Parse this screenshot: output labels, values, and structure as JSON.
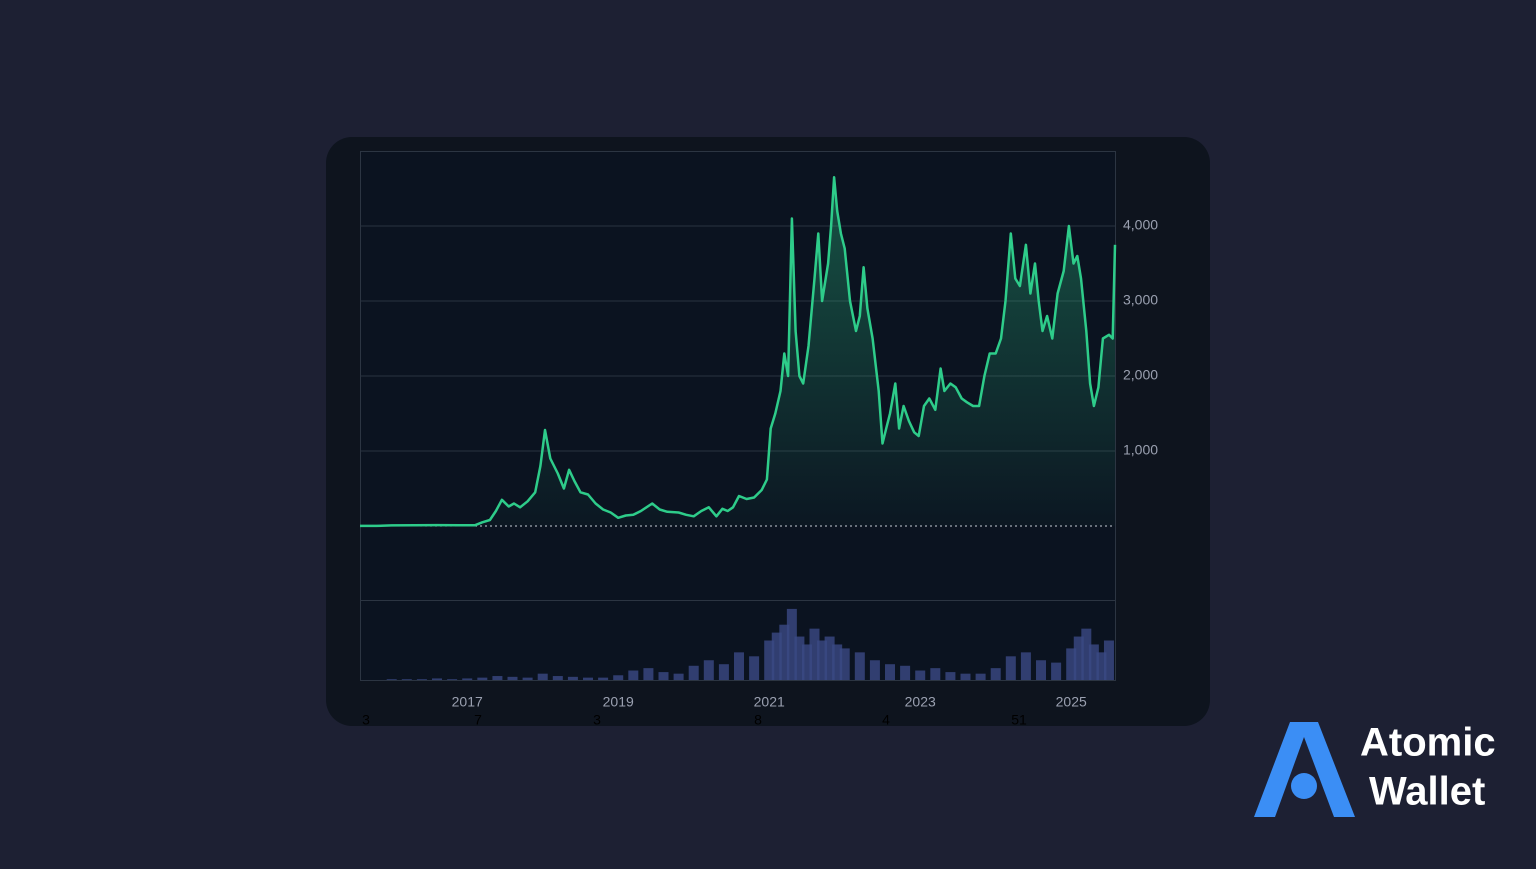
{
  "chart_data": {
    "type": "line",
    "color": "#2ecc8a",
    "x": [
      2015.58,
      2015.8,
      2016.0,
      2016.3,
      2016.6,
      2016.9,
      2017.1,
      2017.2,
      2017.3,
      2017.38,
      2017.46,
      2017.55,
      2017.62,
      2017.7,
      2017.8,
      2017.9,
      2017.97,
      2018.03,
      2018.1,
      2018.2,
      2018.28,
      2018.35,
      2018.42,
      2018.5,
      2018.6,
      2018.7,
      2018.8,
      2018.9,
      2019.0,
      2019.1,
      2019.2,
      2019.3,
      2019.45,
      2019.55,
      2019.65,
      2019.8,
      2019.9,
      2020.0,
      2020.1,
      2020.2,
      2020.3,
      2020.38,
      2020.45,
      2020.52,
      2020.6,
      2020.7,
      2020.8,
      2020.9,
      2020.97,
      2021.02,
      2021.08,
      2021.15,
      2021.2,
      2021.25,
      2021.3,
      2021.35,
      2021.4,
      2021.45,
      2021.52,
      2021.6,
      2021.65,
      2021.7,
      2021.78,
      2021.82,
      2021.86,
      2021.9,
      2021.95,
      2022.0,
      2022.07,
      2022.15,
      2022.2,
      2022.25,
      2022.3,
      2022.37,
      2022.45,
      2022.5,
      2022.55,
      2022.6,
      2022.67,
      2022.72,
      2022.78,
      2022.85,
      2022.92,
      2022.98,
      2023.05,
      2023.12,
      2023.2,
      2023.27,
      2023.32,
      2023.4,
      2023.47,
      2023.55,
      2023.62,
      2023.7,
      2023.78,
      2023.85,
      2023.92,
      2024.0,
      2024.07,
      2024.13,
      2024.2,
      2024.26,
      2024.32,
      2024.4,
      2024.46,
      2024.52,
      2024.57,
      2024.62,
      2024.68,
      2024.75,
      2024.82,
      2024.9,
      2024.97,
      2025.03,
      2025.08,
      2025.13,
      2025.2,
      2025.25,
      2025.3,
      2025.36,
      2025.42,
      2025.5,
      2025.55,
      2025.58
    ],
    "values": [
      1,
      1,
      8,
      10,
      12,
      10,
      10,
      50,
      80,
      200,
      350,
      260,
      300,
      250,
      330,
      450,
      800,
      1280,
      900,
      700,
      500,
      750,
      600,
      450,
      420,
      300,
      220,
      180,
      110,
      140,
      150,
      200,
      300,
      220,
      190,
      180,
      150,
      130,
      200,
      250,
      130,
      230,
      200,
      250,
      400,
      360,
      380,
      480,
      620,
      1300,
      1500,
      1800,
      2300,
      2000,
      4100,
      2600,
      2000,
      1900,
      2400,
      3300,
      3900,
      3000,
      3500,
      4000,
      4650,
      4200,
      3900,
      3700,
      3000,
      2600,
      2800,
      3450,
      2900,
      2500,
      1800,
      1100,
      1300,
      1500,
      1900,
      1300,
      1600,
      1400,
      1250,
      1200,
      1600,
      1700,
      1550,
      2100,
      1800,
      1900,
      1850,
      1700,
      1650,
      1600,
      1600,
      2000,
      2300,
      2300,
      2500,
      3000,
      3900,
      3300,
      3200,
      3750,
      3100,
      3500,
      3000,
      2600,
      2800,
      2500,
      3100,
      3400,
      4000,
      3500,
      3600,
      3300,
      2600,
      1900,
      1600,
      1850,
      2500,
      2550,
      2500,
      3750
    ],
    "ylim": [
      -1000,
      5000
    ],
    "xlim": [
      2015.58,
      2025.58
    ],
    "xticks": [
      2017,
      2019,
      2021,
      2023,
      2025
    ],
    "yticks": [
      {
        "value": 1000,
        "label": "1,000"
      },
      {
        "value": 2000,
        "label": "2,000"
      },
      {
        "value": 3000,
        "label": "3,000"
      },
      {
        "value": 4000,
        "label": "4,000"
      }
    ],
    "grid": true,
    "volume": {
      "color": "#3b4a85",
      "ylim": [
        0,
        100
      ],
      "x": [
        2015.6,
        2015.8,
        2016.0,
        2016.2,
        2016.4,
        2016.6,
        2016.8,
        2017.0,
        2017.2,
        2017.4,
        2017.6,
        2017.8,
        2018.0,
        2018.2,
        2018.4,
        2018.6,
        2018.8,
        2019.0,
        2019.2,
        2019.4,
        2019.6,
        2019.8,
        2020.0,
        2020.2,
        2020.4,
        2020.6,
        2020.8,
        2021.0,
        2021.1,
        2021.2,
        2021.3,
        2021.4,
        2021.5,
        2021.6,
        2021.7,
        2021.8,
        2021.9,
        2022.0,
        2022.2,
        2022.4,
        2022.6,
        2022.8,
        2023.0,
        2023.2,
        2023.4,
        2023.6,
        2023.8,
        2024.0,
        2024.2,
        2024.4,
        2024.6,
        2024.8,
        2025.0,
        2025.1,
        2025.2,
        2025.3,
        2025.4,
        2025.5
      ],
      "values": [
        0,
        0,
        1,
        1,
        1,
        2,
        1,
        2,
        3,
        5,
        4,
        3,
        8,
        5,
        4,
        3,
        3,
        6,
        12,
        15,
        10,
        8,
        18,
        25,
        20,
        35,
        30,
        50,
        60,
        70,
        90,
        55,
        45,
        65,
        50,
        55,
        45,
        40,
        35,
        25,
        20,
        18,
        12,
        15,
        10,
        8,
        8,
        15,
        30,
        35,
        25,
        22,
        40,
        55,
        65,
        45,
        35,
        50
      ]
    },
    "bottom_labels": [
      "3",
      "7",
      "3",
      "8",
      "4",
      "51"
    ]
  },
  "brand": [
    "Atomic",
    "Wallet"
  ]
}
